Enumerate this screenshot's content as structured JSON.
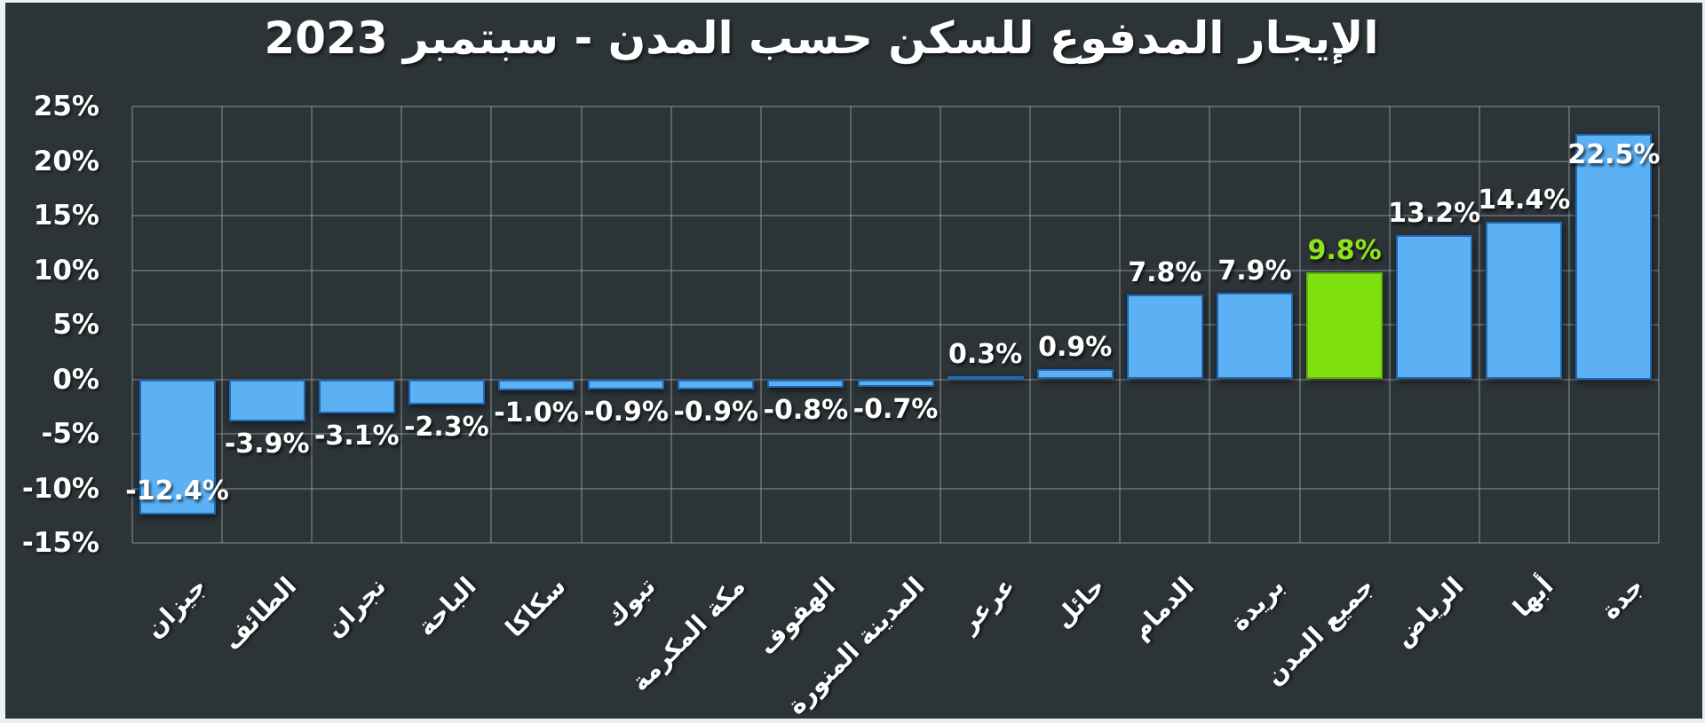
{
  "title": "الإيجار المدفوع للسكن حسب المدن - سبتمبر 2023",
  "colors": {
    "background": "#2d3437",
    "frame": "#e9f1f5",
    "bar": "#5cb1f4",
    "bar_border": "#2368ae",
    "highlight_bar": "#7ee00f",
    "highlight_label": "#8ee41b",
    "text": "#ffffff",
    "gridline": "#a5b0b5"
  },
  "chart_data": {
    "type": "bar",
    "title": "الإيجار المدفوع للسكن حسب المدن - سبتمبر 2023",
    "categories": [
      "جيزان",
      "الطائف",
      "نجران",
      "الباحة",
      "سكاكا",
      "تبوك",
      "مكة المكرمة",
      "الهفوف",
      "المدينة المنورة",
      "عرعر",
      "حائل",
      "الدمام",
      "بريدة",
      "جميع المدن",
      "الرياض",
      "أبها",
      "جدة"
    ],
    "values": [
      -12.4,
      -3.9,
      -3.1,
      -2.3,
      -1.0,
      -0.9,
      -0.9,
      -0.8,
      -0.7,
      0.3,
      0.9,
      7.8,
      7.9,
      9.8,
      13.2,
      14.4,
      22.5
    ],
    "value_labels": [
      "-12.4%",
      "-3.9%",
      "-3.1%",
      "-2.3%",
      "-1.0%",
      "-0.9%",
      "-0.9%",
      "-0.8%",
      "-0.7%",
      "0.3%",
      "0.9%",
      "7.8%",
      "7.9%",
      "9.8%",
      "13.2%",
      "14.4%",
      "22.5%"
    ],
    "highlight_index": 13,
    "highlight_category": "جميع المدن",
    "yticks": [
      {
        "value": 25,
        "label": "25%"
      },
      {
        "value": 20,
        "label": "20%"
      },
      {
        "value": 15,
        "label": "15%"
      },
      {
        "value": 10,
        "label": "10%"
      },
      {
        "value": 5,
        "label": "5%"
      },
      {
        "value": 0,
        "label": "0%"
      },
      {
        "value": -5,
        "label": "-5%"
      },
      {
        "value": -10,
        "label": "-10%"
      },
      {
        "value": -15,
        "label": "-15%"
      }
    ],
    "ylim": [
      -15,
      25
    ],
    "grid": true,
    "legend": "none",
    "xlabel": "",
    "ylabel": ""
  }
}
